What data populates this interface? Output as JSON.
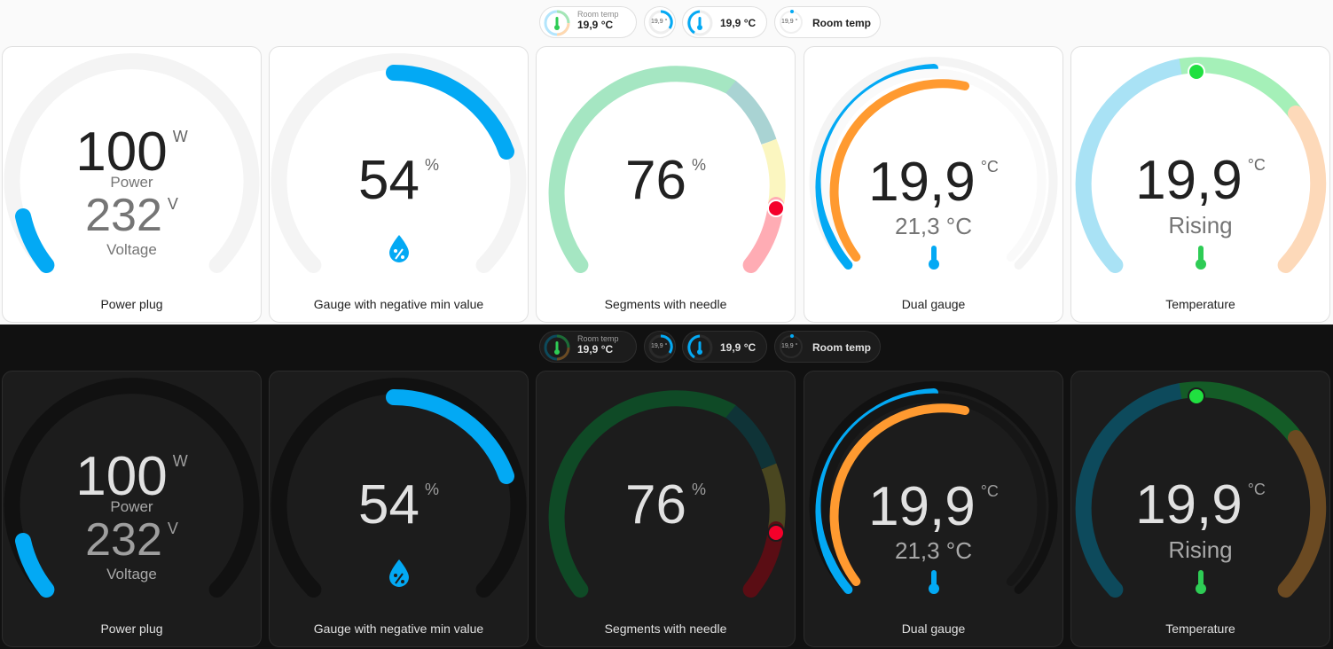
{
  "colors": {
    "accent": "#03a9f4",
    "orange": "#ff9a30",
    "needle_red": "#f4002a",
    "marker_green": "#20e040"
  },
  "badges": [
    {
      "name": "Room temp",
      "state": "19,9 °C",
      "icon": "thermometer-icon"
    },
    {
      "state": "19,9 °"
    },
    {
      "state": "19,9 °C",
      "icon": "thermometer-icon"
    },
    {
      "mini": "19,9 °",
      "label": "Room temp"
    }
  ],
  "cards": {
    "power": {
      "name": "Power plug",
      "value": "100",
      "unit": "W",
      "label": "Power",
      "value2": "232",
      "unit2": "V",
      "label2": "Voltage",
      "fill_fraction": 0.12
    },
    "negative": {
      "name": "Gauge with negative min value",
      "value": "54",
      "unit": "%",
      "icon": "water-percent-icon",
      "fill_fraction": 0.27
    },
    "segments": {
      "name": "Segments with needle",
      "value": "76",
      "unit": "%",
      "needle_fraction": 0.76
    },
    "dual": {
      "name": "Dual gauge",
      "value": "19,9",
      "unit": "°C",
      "value2": "21,3 °C",
      "icon": "thermometer-icon"
    },
    "temperature": {
      "name": "Temperature",
      "value": "19,9",
      "unit": "°C",
      "label": "Rising",
      "icon": "thermometer-icon"
    }
  }
}
